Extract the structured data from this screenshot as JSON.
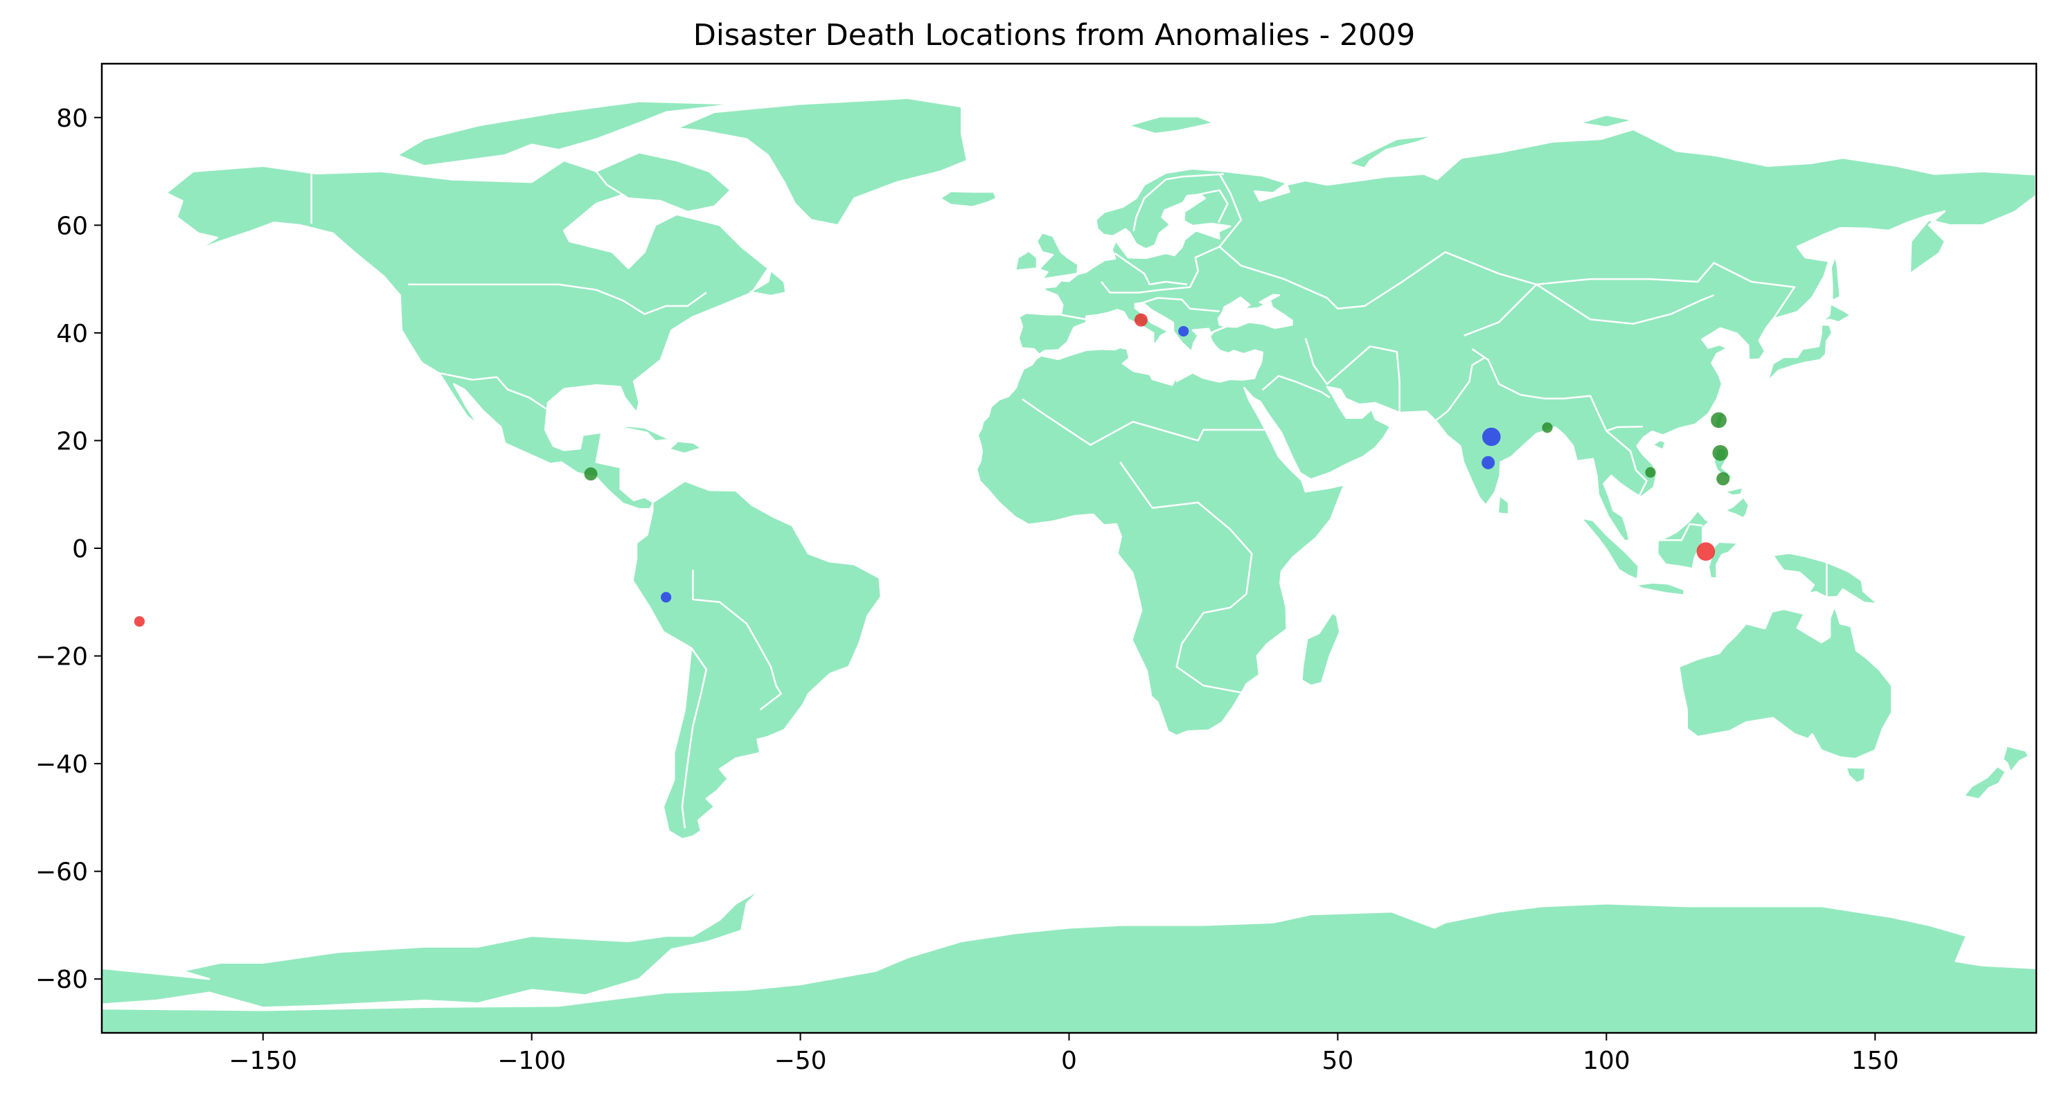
{
  "chart_data": {
    "type": "scatter",
    "title": "Disaster Death Locations from Anomalies - 2009",
    "xlabel": "",
    "ylabel": "",
    "xlim": [
      -180,
      180
    ],
    "ylim": [
      -90,
      90
    ],
    "x_ticks": [
      -150,
      -100,
      -50,
      0,
      50,
      100,
      150
    ],
    "y_ticks": [
      80,
      60,
      40,
      20,
      0,
      -20,
      -40,
      -60,
      -80
    ],
    "grid": false,
    "land_color": "#93e9be",
    "border_color": "#ffffff",
    "points": [
      {
        "lon": -173.0,
        "lat": -13.6,
        "color": "#ee2222",
        "size": 4
      },
      {
        "lon": 13.4,
        "lat": 42.4,
        "color": "#ee2222",
        "size": 5
      },
      {
        "lon": 118.5,
        "lat": -0.6,
        "color": "#ee2222",
        "size": 7
      },
      {
        "lon": 21.3,
        "lat": 40.3,
        "color": "#2233ee",
        "size": 4
      },
      {
        "lon": 78.6,
        "lat": 20.7,
        "color": "#2233ee",
        "size": 7
      },
      {
        "lon": 78.0,
        "lat": 15.9,
        "color": "#2233ee",
        "size": 5
      },
      {
        "lon": -75.0,
        "lat": -9.1,
        "color": "#2233ee",
        "size": 4
      },
      {
        "lon": -89.0,
        "lat": 13.8,
        "color": "#228822",
        "size": 5
      },
      {
        "lon": 89.0,
        "lat": 22.4,
        "color": "#228822",
        "size": 4
      },
      {
        "lon": 108.2,
        "lat": 14.1,
        "color": "#228822",
        "size": 4
      },
      {
        "lon": 120.9,
        "lat": 23.8,
        "color": "#228822",
        "size": 6
      },
      {
        "lon": 121.2,
        "lat": 17.7,
        "color": "#228822",
        "size": 6
      },
      {
        "lon": 121.7,
        "lat": 12.9,
        "color": "#228822",
        "size": 5
      }
    ]
  }
}
